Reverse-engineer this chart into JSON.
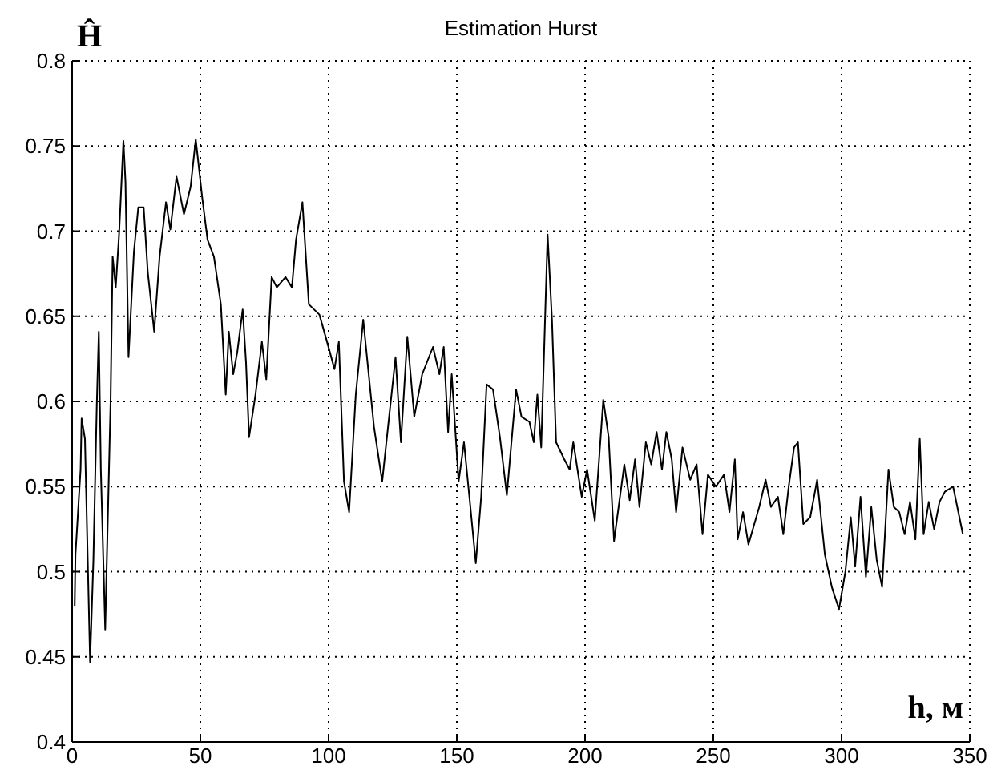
{
  "chart_data": {
    "type": "line",
    "title": "Estimation Hurst",
    "xlabel": "h, м",
    "ylabel": "Ĥ",
    "xlim": [
      0,
      350
    ],
    "xticks": [
      0,
      50,
      100,
      150,
      200,
      250,
      300,
      350
    ],
    "ylim": [
      0.4,
      0.8
    ],
    "yticks": [
      0.4,
      0.45,
      0.5,
      0.55,
      0.6,
      0.65,
      0.7,
      0.75,
      0.8
    ],
    "grid": true,
    "legend": false,
    "marker": "none",
    "line_style": "solid",
    "series": [
      {
        "color": "#000000",
        "x": [
          1,
          1.3,
          3.3,
          3.7,
          5,
          7,
          8.3,
          9.6,
          10.4,
          11.2,
          12.9,
          15,
          15.8,
          17,
          18.3,
          20,
          20.8,
          22,
          24.1,
          25.8,
          27.9,
          29.5,
          32,
          34.1,
          36.6,
          38.3,
          40.7,
          43.6,
          46.2,
          48.2,
          50.7,
          52.8,
          55.3,
          58,
          59.9,
          61.1,
          62.8,
          64.4,
          66.5,
          67.8,
          69,
          71.5,
          74,
          75.7,
          77.8,
          79.8,
          83.2,
          85.7,
          87.3,
          89.8,
          92.3,
          96.4,
          99.4,
          102.3,
          104,
          106,
          108,
          110.6,
          113.5,
          117.7,
          120.9,
          123.6,
          126.1,
          128.2,
          130.7,
          133.4,
          136.5,
          140.7,
          143.2,
          144.9,
          146.6,
          148,
          150.7,
          152.8,
          154.9,
          157.4,
          159.5,
          161.6,
          164.1,
          166.8,
          169.5,
          173.1,
          175.2,
          178.3,
          180,
          181.4,
          182.9,
          185.4,
          187.1,
          188.7,
          191.9,
          194,
          195.4,
          198.7,
          200.8,
          203.8,
          207.1,
          209.2,
          211.3,
          215.3,
          217.4,
          219.5,
          221.2,
          223.7,
          225.8,
          227.9,
          230,
          231.7,
          233.8,
          235.5,
          238,
          241,
          243.5,
          245.8,
          247.9,
          251,
          254.2,
          256.3,
          258.4,
          259.5,
          261.6,
          263.7,
          267.9,
          270.4,
          272.5,
          275.2,
          277.3,
          279.4,
          281.5,
          283,
          285.1,
          287.8,
          290.5,
          293.5,
          296.2,
          299,
          301.5,
          303.6,
          305.3,
          307.4,
          309.5,
          311.6,
          313.7,
          315.8,
          318.3,
          320.4,
          322.5,
          324.6,
          326.7,
          328.8,
          330.5,
          332,
          334,
          336.1,
          338.2,
          340.3,
          343.5,
          347.3
        ],
        "values": [
          0.48,
          0.51,
          0.56,
          0.59,
          0.578,
          0.447,
          0.507,
          0.597,
          0.641,
          0.56,
          0.466,
          0.6,
          0.685,
          0.667,
          0.698,
          0.753,
          0.729,
          0.626,
          0.688,
          0.714,
          0.714,
          0.676,
          0.641,
          0.685,
          0.717,
          0.701,
          0.732,
          0.71,
          0.726,
          0.754,
          0.72,
          0.695,
          0.685,
          0.657,
          0.604,
          0.641,
          0.616,
          0.629,
          0.654,
          0.623,
          0.579,
          0.604,
          0.635,
          0.613,
          0.673,
          0.667,
          0.673,
          0.667,
          0.695,
          0.717,
          0.657,
          0.651,
          0.635,
          0.619,
          0.635,
          0.553,
          0.535,
          0.604,
          0.648,
          0.585,
          0.553,
          0.591,
          0.626,
          0.576,
          0.638,
          0.591,
          0.616,
          0.632,
          0.616,
          0.632,
          0.582,
          0.616,
          0.553,
          0.576,
          0.544,
          0.505,
          0.544,
          0.61,
          0.607,
          0.579,
          0.545,
          0.607,
          0.591,
          0.588,
          0.576,
          0.604,
          0.573,
          0.698,
          0.648,
          0.576,
          0.566,
          0.56,
          0.576,
          0.544,
          0.56,
          0.53,
          0.601,
          0.579,
          0.518,
          0.563,
          0.542,
          0.566,
          0.538,
          0.576,
          0.563,
          0.582,
          0.56,
          0.582,
          0.566,
          0.535,
          0.573,
          0.554,
          0.563,
          0.522,
          0.557,
          0.55,
          0.557,
          0.535,
          0.566,
          0.519,
          0.535,
          0.516,
          0.538,
          0.554,
          0.538,
          0.544,
          0.522,
          0.55,
          0.573,
          0.576,
          0.528,
          0.532,
          0.554,
          0.51,
          0.491,
          0.478,
          0.5,
          0.532,
          0.503,
          0.544,
          0.497,
          0.538,
          0.507,
          0.491,
          0.56,
          0.538,
          0.535,
          0.522,
          0.541,
          0.519,
          0.578,
          0.522,
          0.541,
          0.525,
          0.541,
          0.547,
          0.55,
          0.522
        ]
      }
    ]
  }
}
